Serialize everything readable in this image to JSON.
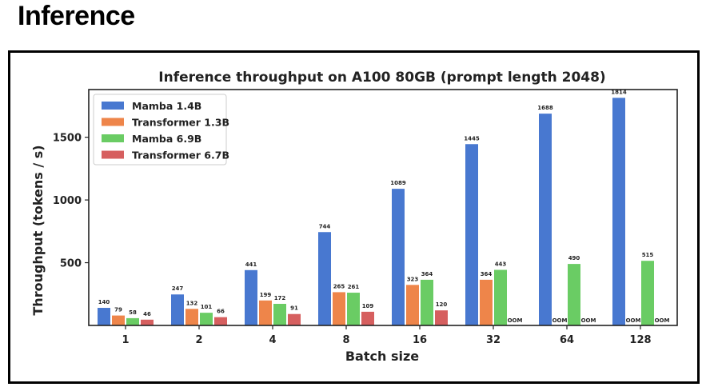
{
  "heading": "Inference",
  "chart_data": {
    "type": "bar",
    "title": "Inference throughput on A100 80GB (prompt length 2048)",
    "xlabel": "Batch size",
    "ylabel": "Throughput (tokens / s)",
    "ylim": [
      0,
      1880
    ],
    "yticks": [
      500,
      1000,
      1500
    ],
    "categories": [
      "1",
      "2",
      "4",
      "8",
      "16",
      "32",
      "64",
      "128"
    ],
    "legend_position": "top-left",
    "missing_label": "OOM",
    "series": [
      {
        "name": "Mamba 1.4B",
        "color": "#4878d0",
        "values": [
          140,
          247,
          441,
          744,
          1089,
          1445,
          1688,
          1814
        ]
      },
      {
        "name": "Transformer 1.3B",
        "color": "#ee854a",
        "values": [
          79,
          132,
          199,
          265,
          323,
          364,
          null,
          null
        ]
      },
      {
        "name": "Mamba 6.9B",
        "color": "#6acc64",
        "values": [
          58,
          101,
          172,
          261,
          364,
          443,
          490,
          515
        ]
      },
      {
        "name": "Transformer 6.7B",
        "color": "#d65f5f",
        "values": [
          46,
          66,
          91,
          109,
          120,
          null,
          null,
          null
        ]
      }
    ]
  }
}
